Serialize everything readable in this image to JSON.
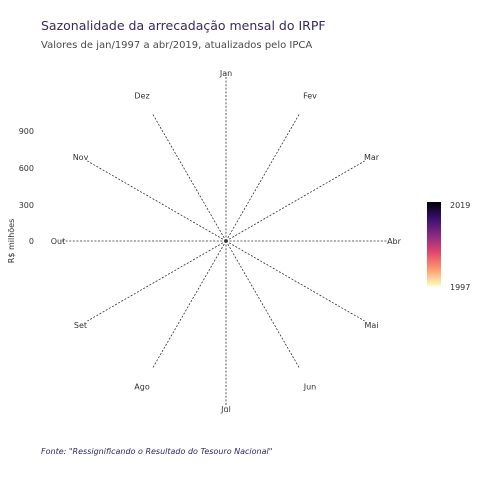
{
  "header": {
    "title": "Sazonalidade da arrecadação mensal do IRPF",
    "subtitle": "Valores de jan/1997 a abr/2019, atualizados pelo IPCA"
  },
  "caption": "Fonte: \"Ressignificando o Resultado do Tesouro Nacional\"",
  "chart_data": {
    "type": "line",
    "coordinate_system": "polar",
    "title": "Sazonalidade da arrecadação mensal do IRPF",
    "subtitle": "Valores de jan/1997 a abr/2019, atualizados pelo IPCA",
    "categories": [
      "Jan",
      "Fev",
      "Mar",
      "Abr",
      "Mai",
      "Jun",
      "Jul",
      "Ago",
      "Set",
      "Out",
      "Nov",
      "Dez"
    ],
    "ylabel": "R$ milhões",
    "yticks": [
      "0",
      "300",
      "600",
      "900"
    ],
    "ylim": [
      0,
      1200
    ],
    "series": [],
    "legend": {
      "type": "colorbar",
      "placement": "right",
      "min_label": "1997",
      "max_label": "2019",
      "colors": [
        "#fcfdbf",
        "#fd9b6b",
        "#e3466e",
        "#8c2981",
        "#3b0f70",
        "#000004"
      ]
    },
    "grid": true
  }
}
